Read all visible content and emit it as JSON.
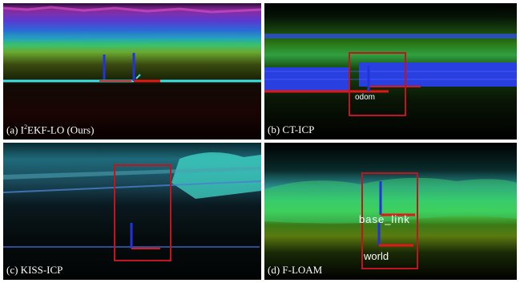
{
  "panels": [
    {
      "id": "a",
      "caption_prefix": "(a) I",
      "caption_sup": "2",
      "caption_suffix": "EKF-LO (Ours)"
    },
    {
      "id": "b",
      "caption": "(b) CT-ICP",
      "frame_label": "odom"
    },
    {
      "id": "c",
      "caption": "(c) KISS-ICP"
    },
    {
      "id": "d",
      "caption": "(d) F-LOAM",
      "frame_label_top": "base_link",
      "frame_label_bottom": "world"
    }
  ],
  "colors": {
    "highlight_box": "#c0141e",
    "axis_x": "#e01818",
    "axis_z": "#2233dd",
    "trajectory_cyan": "#40e0e8"
  }
}
